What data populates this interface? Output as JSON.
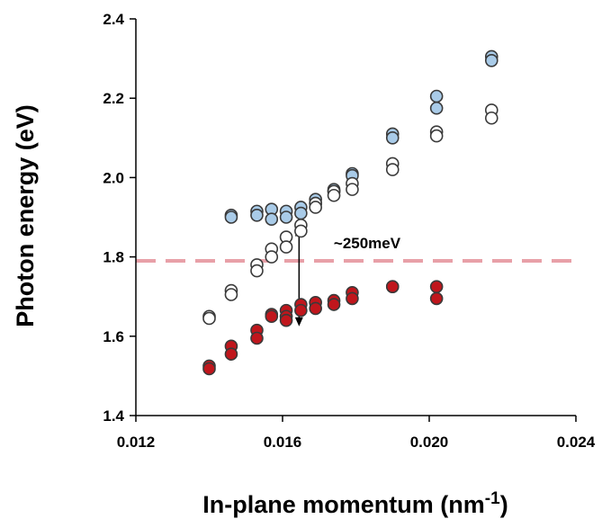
{
  "chart_data": {
    "type": "scatter",
    "title": "",
    "xlabel": "In-plane momentum (nm",
    "xlabel_sup": "-1",
    "xlabel_end": ")",
    "ylabel": "Photon energy (eV)",
    "xlim": [
      0.012,
      0.024
    ],
    "ylim": [
      1.4,
      2.4
    ],
    "xticks": [
      0.012,
      0.016,
      0.02,
      0.024
    ],
    "xtick_labels": [
      "0.012",
      "0.016",
      "0.020",
      "0.024"
    ],
    "yticks": [
      1.4,
      1.6,
      1.8,
      2.0,
      2.2,
      2.4
    ],
    "ytick_labels": [
      "1.4",
      "1.6",
      "1.8",
      "2.0",
      "2.2",
      "2.4"
    ],
    "grid": false,
    "series": [
      {
        "color": "#a9cbe8",
        "stroke": "#3a3a3a",
        "points": [
          [
            0.0146,
            1.905
          ],
          [
            0.0146,
            1.9
          ],
          [
            0.0153,
            1.915
          ],
          [
            0.0153,
            1.905
          ],
          [
            0.0157,
            1.92
          ],
          [
            0.0157,
            1.895
          ],
          [
            0.0161,
            1.915
          ],
          [
            0.0161,
            1.9
          ],
          [
            0.0165,
            1.925
          ],
          [
            0.0165,
            1.91
          ],
          [
            0.0169,
            1.945
          ],
          [
            0.0169,
            1.935
          ],
          [
            0.0174,
            1.97
          ],
          [
            0.0174,
            1.965
          ],
          [
            0.0179,
            2.01
          ],
          [
            0.0179,
            2.005
          ],
          [
            0.019,
            2.11
          ],
          [
            0.019,
            2.1
          ],
          [
            0.0202,
            2.205
          ],
          [
            0.0202,
            2.175
          ],
          [
            0.0217,
            2.305
          ],
          [
            0.0217,
            2.295
          ]
        ]
      },
      {
        "color": "#ffffff",
        "stroke": "#3a3a3a",
        "points": [
          [
            0.014,
            1.65
          ],
          [
            0.014,
            1.645
          ],
          [
            0.0146,
            1.715
          ],
          [
            0.0146,
            1.705
          ],
          [
            0.0153,
            1.78
          ],
          [
            0.0153,
            1.765
          ],
          [
            0.0157,
            1.82
          ],
          [
            0.0157,
            1.8
          ],
          [
            0.0161,
            1.85
          ],
          [
            0.0161,
            1.825
          ],
          [
            0.0165,
            1.88
          ],
          [
            0.0165,
            1.865
          ],
          [
            0.0169,
            1.935
          ],
          [
            0.0169,
            1.925
          ],
          [
            0.0174,
            1.965
          ],
          [
            0.0174,
            1.955
          ],
          [
            0.0179,
            1.985
          ],
          [
            0.0179,
            1.97
          ],
          [
            0.019,
            2.035
          ],
          [
            0.019,
            2.02
          ],
          [
            0.0202,
            2.115
          ],
          [
            0.0202,
            2.105
          ],
          [
            0.0217,
            2.17
          ],
          [
            0.0217,
            2.15
          ]
        ]
      },
      {
        "color": "#c0161c",
        "stroke": "#3a3a3a",
        "points": [
          [
            0.014,
            1.525
          ],
          [
            0.014,
            1.518
          ],
          [
            0.0146,
            1.575
          ],
          [
            0.0146,
            1.555
          ],
          [
            0.0153,
            1.615
          ],
          [
            0.0153,
            1.595
          ],
          [
            0.0157,
            1.655
          ],
          [
            0.0157,
            1.65
          ],
          [
            0.0161,
            1.665
          ],
          [
            0.0161,
            1.65
          ],
          [
            0.0161,
            1.64
          ],
          [
            0.0165,
            1.68
          ],
          [
            0.0165,
            1.665
          ],
          [
            0.0169,
            1.685
          ],
          [
            0.0169,
            1.67
          ],
          [
            0.0174,
            1.69
          ],
          [
            0.0174,
            1.68
          ],
          [
            0.0179,
            1.71
          ],
          [
            0.0179,
            1.695
          ],
          [
            0.019,
            1.725
          ],
          [
            0.019,
            1.725
          ],
          [
            0.0202,
            1.725
          ],
          [
            0.0202,
            1.695
          ]
        ]
      }
    ],
    "reference_line": {
      "y": 1.79,
      "color": "#e8a0a8",
      "style": "dashed"
    },
    "annotation": {
      "text": "~250meV",
      "x": 0.0172,
      "y": 1.835
    },
    "arrow": {
      "x": 0.01645,
      "y_from": 1.875,
      "y_to": 1.625
    }
  }
}
